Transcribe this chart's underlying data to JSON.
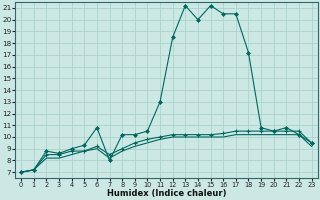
{
  "xlabel": "Humidex (Indice chaleur)",
  "bg_color": "#cce8e4",
  "grid_color": "#aad4cc",
  "line_color": "#006660",
  "xlim": [
    -0.5,
    23.5
  ],
  "ylim": [
    6.5,
    21.5
  ],
  "xticks": [
    0,
    1,
    2,
    3,
    4,
    5,
    6,
    7,
    8,
    9,
    10,
    11,
    12,
    13,
    14,
    15,
    16,
    17,
    18,
    19,
    20,
    21,
    22,
    23
  ],
  "yticks": [
    7,
    8,
    9,
    10,
    11,
    12,
    13,
    14,
    15,
    16,
    17,
    18,
    19,
    20,
    21
  ],
  "line1_x": [
    0,
    1,
    2,
    3,
    4,
    5,
    6,
    7,
    8,
    9,
    10,
    11,
    12,
    13,
    14,
    15,
    16,
    17,
    18,
    19,
    20,
    21,
    22,
    23
  ],
  "line1_y": [
    7.0,
    7.2,
    8.8,
    8.6,
    9.0,
    9.3,
    10.8,
    8.0,
    10.2,
    10.2,
    10.5,
    13.0,
    18.5,
    21.2,
    20.0,
    21.2,
    20.5,
    20.5,
    17.2,
    10.8,
    10.5,
    10.8,
    10.2,
    9.5
  ],
  "line2_x": [
    0,
    1,
    2,
    3,
    4,
    5,
    6,
    7,
    8,
    9,
    10,
    11,
    12,
    13,
    14,
    15,
    16,
    17,
    18,
    19,
    20,
    21,
    22,
    23
  ],
  "line2_y": [
    7.0,
    7.2,
    8.5,
    8.5,
    8.8,
    8.8,
    9.2,
    8.5,
    9.0,
    9.5,
    9.8,
    10.0,
    10.2,
    10.2,
    10.2,
    10.2,
    10.3,
    10.5,
    10.5,
    10.5,
    10.5,
    10.5,
    10.5,
    9.5
  ],
  "line3_x": [
    0,
    1,
    2,
    3,
    4,
    5,
    6,
    7,
    8,
    9,
    10,
    11,
    12,
    13,
    14,
    15,
    16,
    17,
    18,
    19,
    20,
    21,
    22,
    23
  ],
  "line3_y": [
    7.0,
    7.2,
    8.2,
    8.2,
    8.5,
    8.8,
    9.0,
    8.2,
    8.8,
    9.2,
    9.5,
    9.8,
    10.0,
    10.0,
    10.0,
    10.0,
    10.0,
    10.2,
    10.2,
    10.2,
    10.2,
    10.2,
    10.2,
    9.2
  ],
  "marker1": "D",
  "marker2": "+",
  "marker_size1": 2.0,
  "marker_size2": 3.5,
  "linewidth": 0.8
}
